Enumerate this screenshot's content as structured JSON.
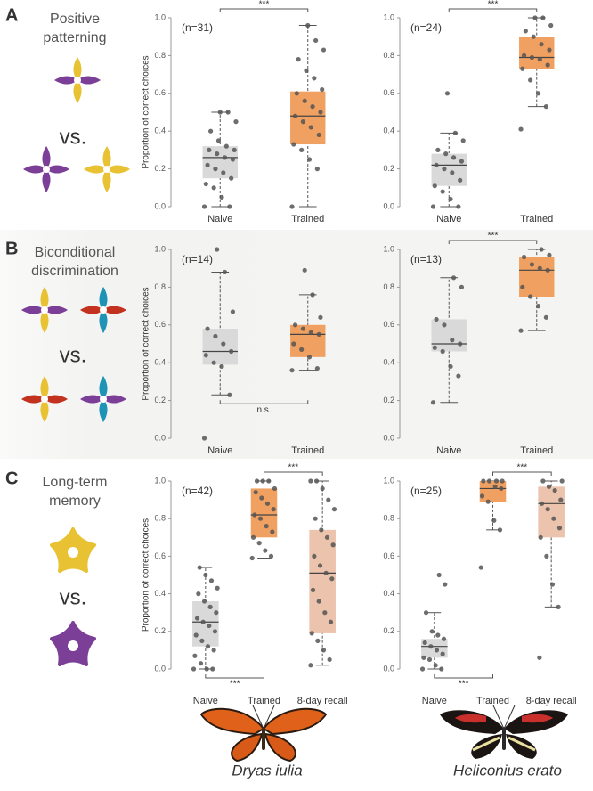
{
  "panels": [
    {
      "label": "A",
      "title_lines": [
        "Positive",
        "patterning"
      ],
      "vs": "vs."
    },
    {
      "label": "B",
      "title_lines": [
        "Biconditional",
        "discrimination"
      ],
      "vs": "vs."
    },
    {
      "label": "C",
      "title_lines": [
        "Long-term",
        "memory"
      ],
      "vs": "vs."
    }
  ],
  "species": [
    "Dryas iulia",
    "Heliconius erato"
  ],
  "chart_data": [
    {
      "type": "box",
      "annotation": "(n=31)",
      "y_label": "Proportion of correct choices",
      "categories": [
        "Naive",
        "Trained"
      ],
      "ylim": [
        0,
        1
      ],
      "yticks": [
        {
          "value": 0,
          "label": "0.0"
        },
        0.2,
        0.4,
        0.6,
        0.8,
        {
          "value": 1,
          "label": "1.0"
        }
      ],
      "boxes": [
        {
          "color": "#d9d9d9",
          "median": 0.26,
          "q1": 0.15,
          "q3": 0.32,
          "whisker_low": 0,
          "whisker_high": 0.5,
          "points": [
            0,
            0,
            0.05,
            0.1,
            0.12,
            0.15,
            0.18,
            0.2,
            0.22,
            0.25,
            0.26,
            0.28,
            0.3,
            0.3,
            0.32,
            0.35,
            0.4,
            0.45,
            0.5,
            0.5
          ]
        },
        {
          "color": "#f0a060",
          "median": 0.48,
          "q1": 0.33,
          "q3": 0.61,
          "whisker_low": 0,
          "whisker_high": 0.96,
          "points": [
            0,
            0.2,
            0.25,
            0.3,
            0.33,
            0.38,
            0.42,
            0.45,
            0.48,
            0.5,
            0.53,
            0.56,
            0.6,
            0.62,
            0.68,
            0.72,
            0.78,
            0.83,
            0.88,
            0.96
          ]
        }
      ],
      "significance": [
        {
          "from": 0,
          "to": 1,
          "label": "***",
          "position": "top"
        }
      ]
    },
    {
      "type": "box",
      "annotation": "(n=24)",
      "categories": [
        "Naive",
        "Trained"
      ],
      "ylim": [
        0,
        1
      ],
      "yticks": [
        {
          "value": 0,
          "label": "0.0"
        },
        0.2,
        0.4,
        0.6,
        0.8,
        {
          "value": 1,
          "label": "1.0"
        }
      ],
      "boxes": [
        {
          "color": "#d9d9d9",
          "median": 0.22,
          "q1": 0.11,
          "q3": 0.28,
          "whisker_low": 0,
          "whisker_high": 0.39,
          "points": [
            0,
            0,
            0.04,
            0.08,
            0.11,
            0.14,
            0.18,
            0.2,
            0.22,
            0.24,
            0.26,
            0.28,
            0.3,
            0.35,
            0.39,
            0.6
          ]
        },
        {
          "color": "#f0a060",
          "median": 0.79,
          "q1": 0.73,
          "q3": 0.9,
          "whisker_low": 0.53,
          "whisker_high": 1,
          "points": [
            0.41,
            0.53,
            0.6,
            0.67,
            0.73,
            0.75,
            0.78,
            0.79,
            0.8,
            0.83,
            0.86,
            0.9,
            0.93,
            0.96,
            1,
            1
          ]
        }
      ],
      "significance": [
        {
          "from": 0,
          "to": 1,
          "label": "***",
          "position": "top"
        }
      ]
    },
    {
      "type": "box",
      "annotation": "(n=14)",
      "y_label": "Proportion of correct choices",
      "categories": [
        "Naive",
        "Trained"
      ],
      "ylim": [
        0,
        1
      ],
      "yticks": [
        {
          "value": 0,
          "label": "0.0"
        },
        0.2,
        0.4,
        0.6,
        0.8,
        {
          "value": 1,
          "label": "1.0"
        }
      ],
      "boxes": [
        {
          "color": "#d9d9d9",
          "median": 0.46,
          "q1": 0.39,
          "q3": 0.58,
          "whisker_low": 0.23,
          "whisker_high": 0.88,
          "points": [
            0,
            0.23,
            0.38,
            0.4,
            0.44,
            0.46,
            0.5,
            0.54,
            0.58,
            0.67,
            0.88,
            1
          ]
        },
        {
          "color": "#f0a060",
          "median": 0.55,
          "q1": 0.43,
          "q3": 0.6,
          "whisker_low": 0.36,
          "whisker_high": 0.76,
          "points": [
            0.36,
            0.37,
            0.43,
            0.47,
            0.5,
            0.55,
            0.56,
            0.58,
            0.6,
            0.64,
            0.76,
            0.89
          ]
        }
      ],
      "significance": [
        {
          "from": 0,
          "to": 1,
          "label": "n.s.",
          "position": "bottom"
        }
      ]
    },
    {
      "type": "box",
      "annotation": "(n=13)",
      "categories": [
        "Naive",
        "Trained"
      ],
      "ylim": [
        0,
        1
      ],
      "yticks": [
        {
          "value": 0,
          "label": "0.0"
        },
        0.2,
        0.4,
        0.6,
        0.8,
        {
          "value": 1,
          "label": "1.0"
        }
      ],
      "boxes": [
        {
          "color": "#d9d9d9",
          "median": 0.5,
          "q1": 0.46,
          "q3": 0.63,
          "whisker_low": 0.19,
          "whisker_high": 0.85,
          "points": [
            0.19,
            0.33,
            0.38,
            0.46,
            0.48,
            0.5,
            0.52,
            0.6,
            0.63,
            0.8,
            0.85
          ]
        },
        {
          "color": "#f0a060",
          "median": 0.89,
          "q1": 0.75,
          "q3": 0.96,
          "whisker_low": 0.57,
          "whisker_high": 1,
          "points": [
            0.57,
            0.64,
            0.7,
            0.75,
            0.8,
            0.89,
            0.9,
            0.92,
            0.96,
            0.97,
            1
          ]
        }
      ],
      "significance": [
        {
          "from": 0,
          "to": 1,
          "label": "***",
          "position": "top"
        }
      ]
    },
    {
      "type": "box",
      "annotation": "(n=42)",
      "y_label": "Proportion of correct choices",
      "categories": [
        "Naive",
        "Trained",
        "8-day recall"
      ],
      "ylim": [
        0,
        1
      ],
      "yticks": [
        {
          "value": 0,
          "label": "0.0"
        },
        0.2,
        0.4,
        0.6,
        0.8,
        {
          "value": 1,
          "label": "1.0"
        }
      ],
      "boxes": [
        {
          "color": "#d9d9d9",
          "median": 0.25,
          "q1": 0.12,
          "q3": 0.36,
          "whisker_low": 0,
          "whisker_high": 0.54,
          "points": [
            0,
            0,
            0,
            0.03,
            0.07,
            0.1,
            0.12,
            0.15,
            0.18,
            0.2,
            0.23,
            0.25,
            0.27,
            0.3,
            0.33,
            0.36,
            0.4,
            0.43,
            0.47,
            0.5,
            0.54
          ]
        },
        {
          "color": "#f0a060",
          "median": 0.82,
          "q1": 0.7,
          "q3": 0.96,
          "whisker_low": 0.59,
          "whisker_high": 1,
          "points": [
            0.59,
            0.6,
            0.63,
            0.67,
            0.7,
            0.73,
            0.76,
            0.8,
            0.82,
            0.85,
            0.88,
            0.91,
            0.94,
            0.96,
            1,
            1,
            1
          ]
        },
        {
          "color": "#ecc3ad",
          "median": 0.51,
          "q1": 0.19,
          "q3": 0.74,
          "whisker_low": 0.02,
          "whisker_high": 1,
          "points": [
            0.02,
            0.05,
            0.1,
            0.15,
            0.19,
            0.25,
            0.3,
            0.36,
            0.42,
            0.48,
            0.51,
            0.55,
            0.6,
            0.66,
            0.7,
            0.74,
            0.8,
            0.85,
            0.9,
            0.96,
            1,
            1
          ]
        }
      ],
      "significance": [
        {
          "from": 0,
          "to": 1,
          "label": "***",
          "position": "bottom"
        },
        {
          "from": 1,
          "to": 2,
          "label": "***",
          "position": "top"
        }
      ]
    },
    {
      "type": "box",
      "annotation": "(n=25)",
      "categories": [
        "Naive",
        "Trained",
        "8-day recall"
      ],
      "ylim": [
        0,
        1
      ],
      "yticks": [
        {
          "value": 0,
          "label": "0.0"
        },
        0.2,
        0.4,
        0.6,
        0.8,
        {
          "value": 1,
          "label": "1.0"
        }
      ],
      "boxes": [
        {
          "color": "#d9d9d9",
          "median": 0.12,
          "q1": 0.06,
          "q3": 0.16,
          "whisker_low": 0,
          "whisker_high": 0.3,
          "points": [
            0,
            0,
            0.02,
            0.05,
            0.06,
            0.08,
            0.1,
            0.12,
            0.14,
            0.16,
            0.18,
            0.2,
            0.3,
            0.45,
            0.5
          ]
        },
        {
          "color": "#f0a060",
          "median": 0.96,
          "q1": 0.89,
          "q3": 1,
          "whisker_low": 0.74,
          "whisker_high": 1,
          "points": [
            0.54,
            0.74,
            0.79,
            0.89,
            0.92,
            0.96,
            0.97,
            1,
            1,
            1,
            1
          ]
        },
        {
          "color": "#ecc3ad",
          "median": 0.88,
          "q1": 0.7,
          "q3": 0.97,
          "whisker_low": 0.33,
          "whisker_high": 1,
          "points": [
            0.06,
            0.33,
            0.45,
            0.6,
            0.7,
            0.75,
            0.8,
            0.85,
            0.88,
            0.9,
            0.95,
            0.97,
            1,
            1
          ]
        }
      ],
      "significance": [
        {
          "from": 0,
          "to": 1,
          "label": "***",
          "position": "bottom"
        },
        {
          "from": 1,
          "to": 2,
          "label": "***",
          "position": "top"
        }
      ]
    }
  ]
}
